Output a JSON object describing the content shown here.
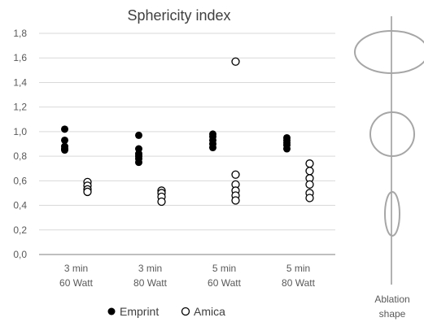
{
  "chart_data": {
    "type": "scatter",
    "title": "Sphericity index",
    "xlabel": "",
    "ylabel": "",
    "ylim": [
      0,
      1.8
    ],
    "yticks": [
      "0,0",
      "0,2",
      "0,4",
      "0,6",
      "0,8",
      "1,0",
      "1,2",
      "1,4",
      "1,6",
      "1,8"
    ],
    "grid": true,
    "legend_position": "bottom",
    "categories": [
      [
        "3 min",
        "60 Watt"
      ],
      [
        "3 min",
        "80 Watt"
      ],
      [
        "5 min",
        "60 Watt"
      ],
      [
        "5 min",
        "80 Watt"
      ]
    ],
    "series": [
      {
        "name": "Emprint",
        "marker": "filled-circle",
        "color": "#000000",
        "values": [
          [
            1.02,
            0.93,
            0.88,
            0.86,
            0.85
          ],
          [
            0.97,
            0.86,
            0.82,
            0.8,
            0.78,
            0.75
          ],
          [
            0.98,
            0.96,
            0.93,
            0.9,
            0.87
          ],
          [
            0.95,
            0.93,
            0.91,
            0.89,
            0.86
          ]
        ]
      },
      {
        "name": "Amica",
        "marker": "open-circle",
        "color": "#000000",
        "values": [
          [
            0.59,
            0.56,
            0.53,
            0.51
          ],
          [
            0.52,
            0.5,
            0.47,
            0.43
          ],
          [
            1.57,
            0.65,
            0.57,
            0.52,
            0.48,
            0.44
          ],
          [
            0.74,
            0.68,
            0.62,
            0.57,
            0.5,
            0.46
          ]
        ]
      }
    ]
  },
  "side_panel": {
    "label_line1": "Ablation",
    "label_line2": "shape",
    "shapes": [
      "wide-ellipse",
      "circle",
      "narrow-ellipse"
    ],
    "color": "#a6a6a6"
  },
  "colors": {
    "text": "#404040",
    "grid": "#d9d9d9",
    "axis_line": "#7f7f7f"
  }
}
